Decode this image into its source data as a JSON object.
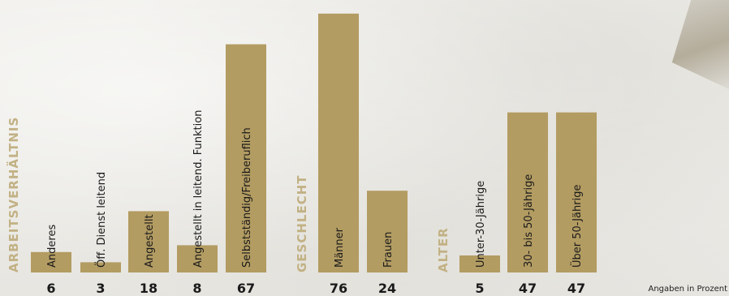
{
  "chart_data": {
    "type": "bar",
    "colors": {
      "bar": "#b39c62",
      "group_label": "#c2b184",
      "text": "#1a1a1a"
    },
    "groups": [
      {
        "name": "ARBEITSVERHÄLTNIS",
        "categories": [
          "Anderes",
          "Öff. Dienst leitend",
          "Angestellt",
          "Angestellt in leitend. Funktion",
          "Selbstständig/Freiberuflich"
        ],
        "values": [
          6,
          3,
          18,
          8,
          67
        ]
      },
      {
        "name": "GESCHLECHT",
        "categories": [
          "Männer",
          "Frauen"
        ],
        "values": [
          76,
          24
        ]
      },
      {
        "name": "ALTER",
        "categories": [
          "Unter-30-Jährige",
          "30- bis 50-Jährige",
          "Über 50-Jährige"
        ],
        "values": [
          5,
          47,
          47
        ]
      }
    ],
    "unit_note": "Angaben in Prozent"
  }
}
